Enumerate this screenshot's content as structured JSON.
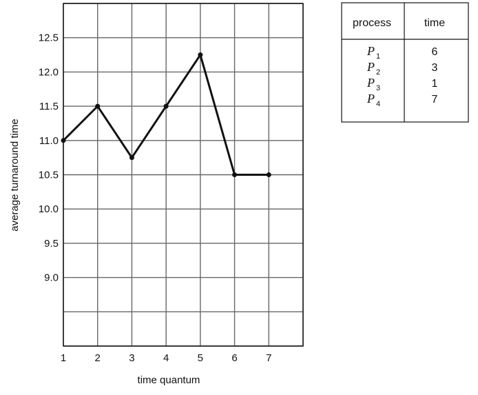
{
  "chart_data": {
    "type": "line",
    "xlabel": "time quantum",
    "ylabel": "average turnaround time",
    "x": [
      1,
      2,
      3,
      4,
      5,
      6,
      7
    ],
    "x_ticks": [
      "1",
      "2",
      "3",
      "4",
      "5",
      "6",
      "7"
    ],
    "series": [
      {
        "values": [
          11.0,
          11.5,
          10.75,
          11.5,
          12.25,
          10.5,
          10.5
        ]
      }
    ],
    "y_ticks": [
      "9.0",
      "9.5",
      "10.0",
      "10.5",
      "11.0",
      "11.5",
      "12.0",
      "12.5"
    ],
    "xlim": [
      1,
      8
    ],
    "ylim": [
      8.0,
      13.0
    ],
    "grid": true,
    "line_color": "#111111",
    "grid_color": "#666666"
  },
  "process_table": {
    "headers": {
      "process": "process",
      "time": "time"
    },
    "rows": [
      {
        "name": "P",
        "sub": "1",
        "time": "6"
      },
      {
        "name": "P",
        "sub": "2",
        "time": "3"
      },
      {
        "name": "P",
        "sub": "3",
        "time": "1"
      },
      {
        "name": "P",
        "sub": "4",
        "time": "7"
      }
    ]
  }
}
